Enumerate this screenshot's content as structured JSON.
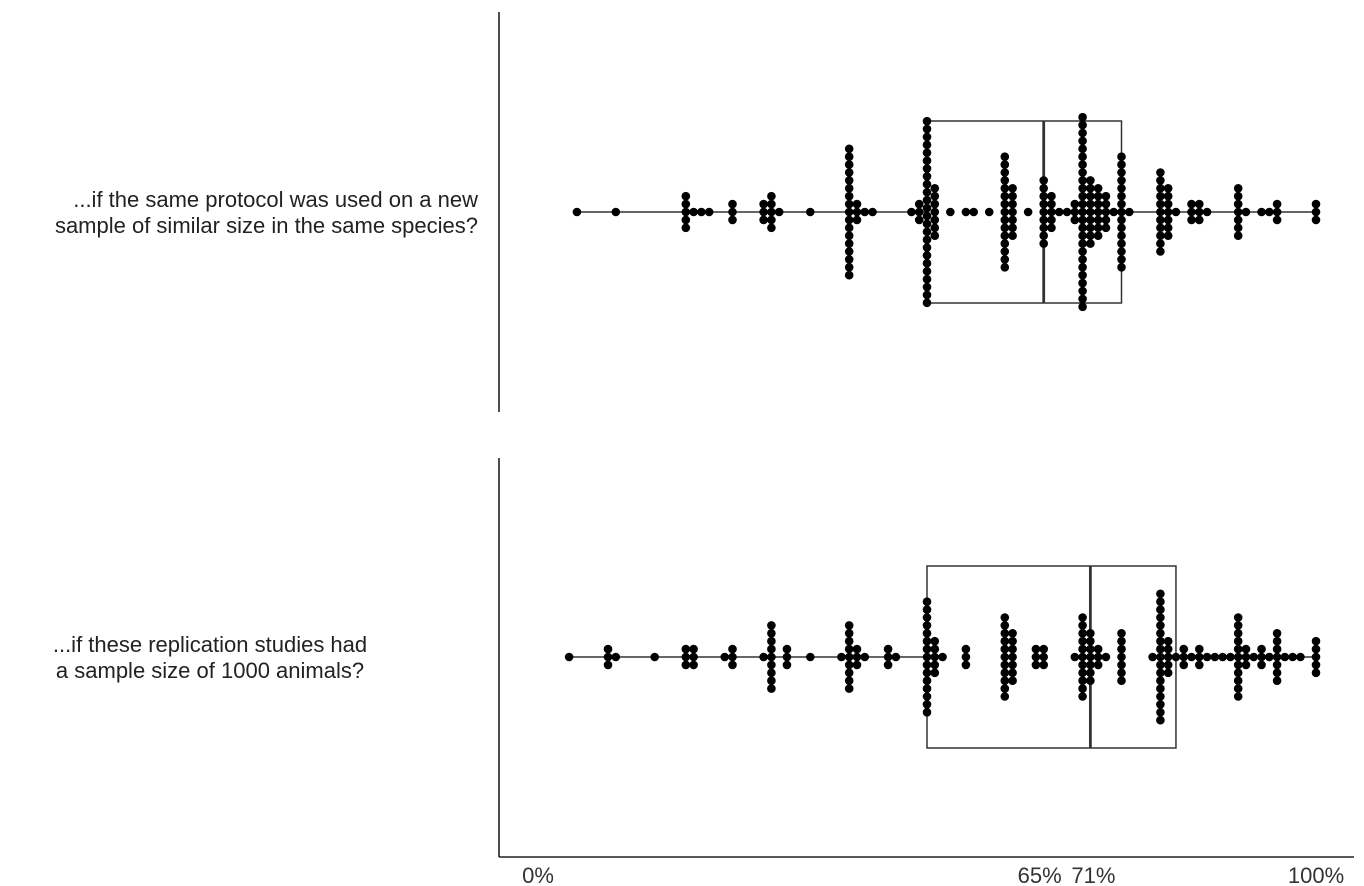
{
  "chart_data": {
    "type": "dot-box",
    "x_ticks": [
      "0%",
      "65%",
      "71%",
      "100%"
    ],
    "x_tick_values": [
      0,
      65,
      71,
      100
    ],
    "xlim": [
      -5,
      105
    ],
    "grid": false,
    "panels": [
      {
        "label_lines": [
          "...if the same protocol was used on a new",
          "sample of similar size in the same species?"
        ],
        "box": {
          "whisker_min": 5,
          "q1": 50,
          "median": 65,
          "q3": 75,
          "whisker_max": 100
        },
        "dot_columns": [
          [
            5,
            1
          ],
          [
            10,
            1
          ],
          [
            19,
            5
          ],
          [
            20,
            1
          ],
          [
            21,
            1
          ],
          [
            22,
            1
          ],
          [
            25,
            3
          ],
          [
            29,
            3
          ],
          [
            30,
            5
          ],
          [
            31,
            1
          ],
          [
            35,
            1
          ],
          [
            40,
            17
          ],
          [
            41,
            3
          ],
          [
            42,
            1
          ],
          [
            43,
            1
          ],
          [
            48,
            1
          ],
          [
            49,
            3
          ],
          [
            50,
            24
          ],
          [
            51,
            7
          ],
          [
            53,
            1
          ],
          [
            55,
            1
          ],
          [
            56,
            1
          ],
          [
            58,
            1
          ],
          [
            60,
            15
          ],
          [
            61,
            7
          ],
          [
            63,
            1
          ],
          [
            65,
            9
          ],
          [
            66,
            5
          ],
          [
            67,
            1
          ],
          [
            68,
            1
          ],
          [
            69,
            3
          ],
          [
            70,
            25
          ],
          [
            71,
            9
          ],
          [
            72,
            7
          ],
          [
            73,
            5
          ],
          [
            74,
            1
          ],
          [
            75,
            15
          ],
          [
            76,
            1
          ],
          [
            80,
            11
          ],
          [
            81,
            7
          ],
          [
            82,
            1
          ],
          [
            84,
            3
          ],
          [
            85,
            3
          ],
          [
            86,
            1
          ],
          [
            90,
            7
          ],
          [
            91,
            1
          ],
          [
            93,
            1
          ],
          [
            94,
            1
          ],
          [
            95,
            3
          ],
          [
            100,
            3
          ]
        ]
      },
      {
        "label_lines": [
          "...if these replication studies had",
          "a sample size of 1000 animals?"
        ],
        "box": {
          "whisker_min": 4,
          "q1": 50,
          "median": 71,
          "q3": 82,
          "whisker_max": 100
        },
        "dot_columns": [
          [
            4,
            1
          ],
          [
            9,
            3
          ],
          [
            10,
            1
          ],
          [
            15,
            1
          ],
          [
            19,
            3
          ],
          [
            20,
            3
          ],
          [
            24,
            1
          ],
          [
            25,
            3
          ],
          [
            29,
            1
          ],
          [
            30,
            9
          ],
          [
            32,
            3
          ],
          [
            35,
            1
          ],
          [
            39,
            1
          ],
          [
            40,
            9
          ],
          [
            41,
            3
          ],
          [
            42,
            1
          ],
          [
            45,
            3
          ],
          [
            46,
            1
          ],
          [
            50,
            15
          ],
          [
            51,
            5
          ],
          [
            52,
            1
          ],
          [
            55,
            3
          ],
          [
            60,
            11
          ],
          [
            61,
            7
          ],
          [
            64,
            3
          ],
          [
            65,
            3
          ],
          [
            69,
            1
          ],
          [
            70,
            11
          ],
          [
            71,
            7
          ],
          [
            72,
            3
          ],
          [
            73,
            1
          ],
          [
            75,
            7
          ],
          [
            79,
            1
          ],
          [
            80,
            17
          ],
          [
            81,
            5
          ],
          [
            82,
            1
          ],
          [
            83,
            3
          ],
          [
            84,
            1
          ],
          [
            85,
            3
          ],
          [
            86,
            1
          ],
          [
            87,
            1
          ],
          [
            88,
            1
          ],
          [
            89,
            1
          ],
          [
            90,
            11
          ],
          [
            91,
            3
          ],
          [
            92,
            1
          ],
          [
            93,
            3
          ],
          [
            94,
            1
          ],
          [
            95,
            7
          ],
          [
            96,
            1
          ],
          [
            97,
            1
          ],
          [
            98,
            1
          ],
          [
            100,
            5
          ]
        ]
      }
    ]
  }
}
